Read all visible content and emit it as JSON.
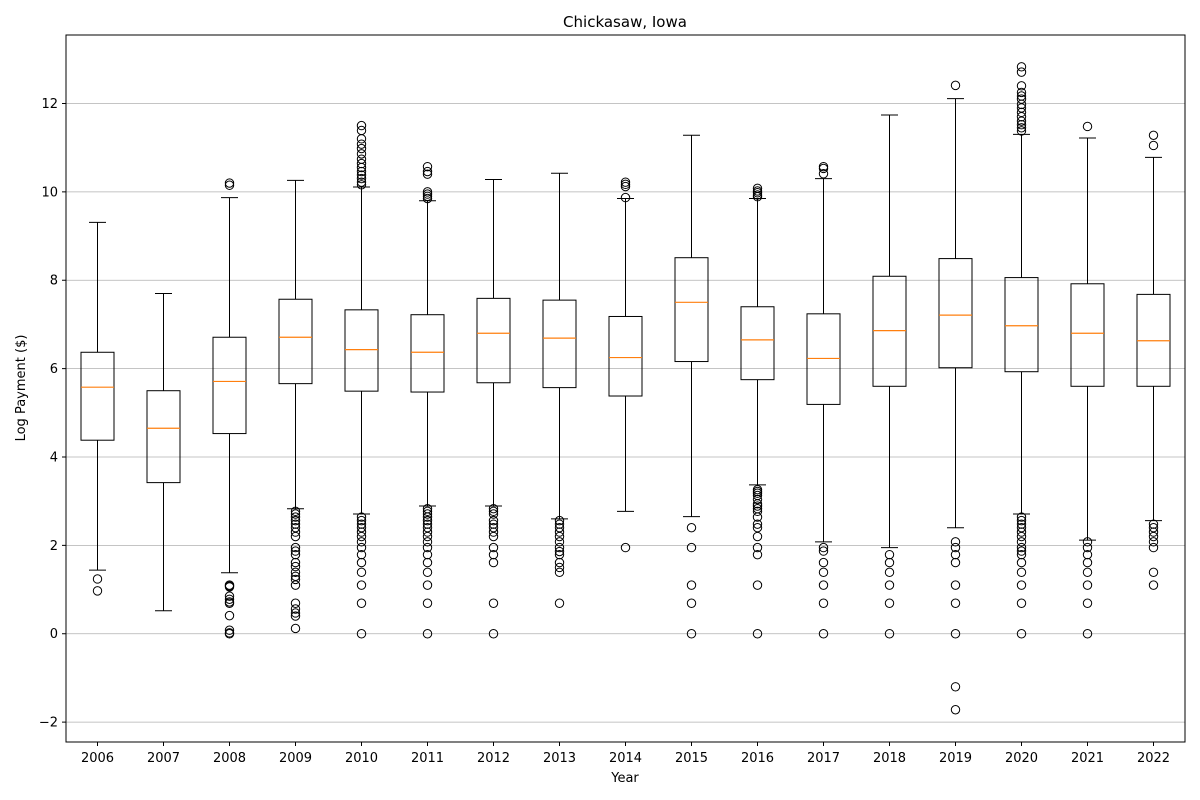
{
  "chart_data": {
    "type": "box",
    "title": "Chickasaw, Iowa",
    "xlabel": "Year",
    "ylabel": "Log Payment ($)",
    "ylim": [
      -2.45,
      13.55
    ],
    "yticks": [
      -2,
      0,
      2,
      4,
      6,
      8,
      10,
      12
    ],
    "ytick_labels": [
      "−2",
      "0",
      "2",
      "4",
      "6",
      "8",
      "10",
      "12"
    ],
    "grid": "y",
    "colors": {
      "median": "#ff7f0e",
      "box": "#000000",
      "grid": "#b0b0b0"
    },
    "categories": [
      "2006",
      "2007",
      "2008",
      "2009",
      "2010",
      "2011",
      "2012",
      "2013",
      "2014",
      "2015",
      "2016",
      "2017",
      "2018",
      "2019",
      "2020",
      "2021",
      "2022"
    ],
    "boxes": [
      {
        "q1": 4.38,
        "median": 5.58,
        "q3": 6.37,
        "whisker_low": 1.44,
        "whisker_high": 9.31,
        "fliers": [
          1.24,
          0.97
        ]
      },
      {
        "q1": 3.42,
        "median": 4.65,
        "q3": 5.5,
        "whisker_low": 0.52,
        "whisker_high": 7.7,
        "fliers": []
      },
      {
        "q1": 4.53,
        "median": 5.71,
        "q3": 6.71,
        "whisker_low": 1.38,
        "whisker_high": 9.87,
        "fliers": [
          10.2,
          10.15,
          1.1,
          1.08,
          1.06,
          0.85,
          0.78,
          0.72,
          0.69,
          0.41,
          0.08,
          0.02,
          0.0
        ]
      },
      {
        "q1": 5.66,
        "median": 6.71,
        "q3": 7.57,
        "whisker_low": 2.83,
        "whisker_high": 10.26,
        "fliers": [
          2.77,
          2.71,
          2.64,
          2.56,
          2.48,
          2.4,
          2.3,
          2.2,
          1.95,
          1.87,
          1.79,
          1.61,
          1.52,
          1.39,
          1.3,
          1.23,
          1.1,
          0.69,
          0.56,
          0.47,
          0.4,
          0.12
        ]
      },
      {
        "q1": 5.49,
        "median": 6.43,
        "q3": 7.33,
        "whisker_low": 2.71,
        "whisker_high": 10.11,
        "fliers": [
          11.5,
          11.39,
          11.2,
          11.08,
          10.98,
          10.86,
          10.74,
          10.64,
          10.55,
          10.46,
          10.38,
          10.3,
          10.22,
          10.16,
          2.64,
          2.56,
          2.48,
          2.4,
          2.3,
          2.2,
          2.08,
          1.95,
          1.79,
          1.61,
          1.39,
          1.1,
          0.69,
          0.0
        ]
      },
      {
        "q1": 5.47,
        "median": 6.37,
        "q3": 7.22,
        "whisker_low": 2.89,
        "whisker_high": 9.8,
        "fliers": [
          10.57,
          10.46,
          10.4,
          10.0,
          9.95,
          9.9,
          9.85,
          2.83,
          2.77,
          2.71,
          2.64,
          2.56,
          2.48,
          2.4,
          2.3,
          2.2,
          2.08,
          1.95,
          1.79,
          1.61,
          1.39,
          1.1,
          0.69,
          0.0
        ]
      },
      {
        "q1": 5.68,
        "median": 6.8,
        "q3": 7.59,
        "whisker_low": 2.89,
        "whisker_high": 10.28,
        "fliers": [
          2.83,
          2.77,
          2.71,
          2.56,
          2.48,
          2.4,
          2.3,
          2.2,
          1.95,
          1.79,
          1.61,
          0.69,
          0.0
        ]
      },
      {
        "q1": 5.57,
        "median": 6.69,
        "q3": 7.55,
        "whisker_low": 2.6,
        "whisker_high": 10.42,
        "fliers": [
          2.56,
          2.48,
          2.4,
          2.3,
          2.2,
          2.08,
          1.95,
          1.86,
          1.79,
          1.61,
          1.5,
          1.39,
          0.69
        ]
      },
      {
        "q1": 5.38,
        "median": 6.25,
        "q3": 7.18,
        "whisker_low": 2.77,
        "whisker_high": 9.85,
        "fliers": [
          10.22,
          10.17,
          10.12,
          9.87,
          1.95
        ]
      },
      {
        "q1": 6.16,
        "median": 7.5,
        "q3": 8.51,
        "whisker_low": 2.65,
        "whisker_high": 11.28,
        "fliers": [
          2.4,
          1.95,
          1.1,
          0.69,
          0.0
        ]
      },
      {
        "q1": 5.75,
        "median": 6.65,
        "q3": 7.4,
        "whisker_low": 3.37,
        "whisker_high": 9.85,
        "fliers": [
          10.08,
          10.02,
          9.98,
          9.93,
          9.89,
          3.26,
          3.22,
          3.18,
          3.13,
          3.04,
          2.94,
          2.89,
          2.83,
          2.77,
          2.64,
          2.48,
          2.4,
          2.2,
          1.95,
          1.79,
          1.1,
          0.0
        ]
      },
      {
        "q1": 5.19,
        "median": 6.23,
        "q3": 7.24,
        "whisker_low": 2.08,
        "whisker_high": 10.3,
        "fliers": [
          10.57,
          10.53,
          10.41,
          1.95,
          1.87,
          1.61,
          1.39,
          1.1,
          0.69,
          0.0
        ]
      },
      {
        "q1": 5.6,
        "median": 6.86,
        "q3": 8.09,
        "whisker_low": 1.95,
        "whisker_high": 11.74,
        "fliers": [
          1.79,
          1.61,
          1.39,
          1.1,
          0.69,
          0.0
        ]
      },
      {
        "q1": 6.02,
        "median": 7.21,
        "q3": 8.49,
        "whisker_low": 2.4,
        "whisker_high": 12.11,
        "fliers": [
          12.41,
          2.08,
          1.95,
          1.79,
          1.61,
          1.1,
          0.69,
          0.0,
          -1.2,
          -1.72
        ]
      },
      {
        "q1": 5.93,
        "median": 6.97,
        "q3": 8.06,
        "whisker_low": 2.71,
        "whisker_high": 11.3,
        "fliers": [
          12.83,
          12.71,
          12.4,
          12.25,
          12.17,
          12.1,
          11.98,
          11.9,
          11.8,
          11.7,
          11.6,
          11.52,
          11.45,
          11.38,
          2.64,
          2.56,
          2.48,
          2.4,
          2.3,
          2.2,
          2.08,
          1.95,
          1.87,
          1.79,
          1.61,
          1.39,
          1.1,
          0.69,
          0.0
        ]
      },
      {
        "q1": 5.6,
        "median": 6.8,
        "q3": 7.92,
        "whisker_low": 2.12,
        "whisker_high": 11.22,
        "fliers": [
          11.48,
          2.08,
          1.95,
          1.79,
          1.61,
          1.39,
          1.1,
          0.69,
          0.0
        ]
      },
      {
        "q1": 5.6,
        "median": 6.63,
        "q3": 7.68,
        "whisker_low": 2.56,
        "whisker_high": 10.78,
        "fliers": [
          11.28,
          11.05,
          2.48,
          2.4,
          2.3,
          2.2,
          2.08,
          1.95,
          1.39,
          1.1
        ]
      }
    ]
  }
}
